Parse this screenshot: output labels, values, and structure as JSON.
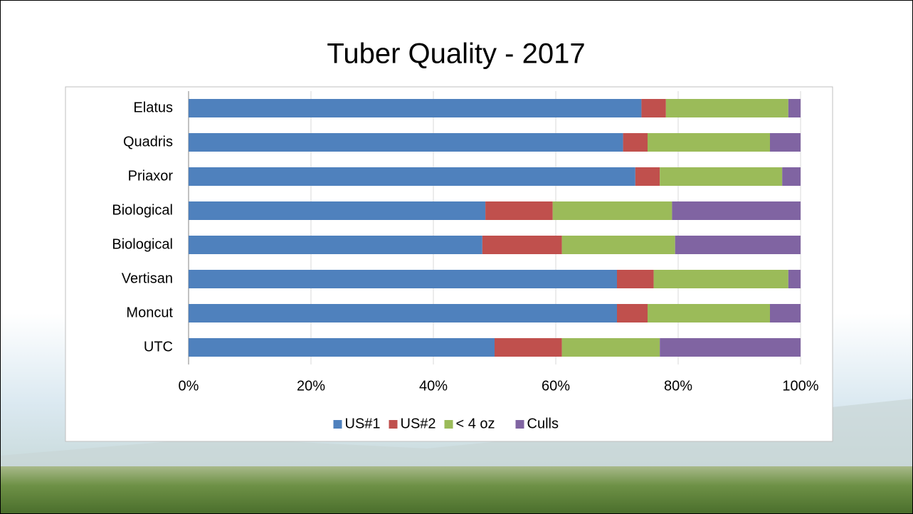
{
  "chart_data": {
    "type": "stacked-bar-horizontal",
    "title": "Tuber Quality - 2017",
    "categories": [
      "Elatus",
      "Quadris",
      "Priaxor",
      "Biological",
      "Biological",
      "Vertisan",
      "Moncut",
      "UTC"
    ],
    "series": [
      {
        "name": "US#1",
        "color": "#4f81bd",
        "values": [
          74,
          71,
          73,
          48.5,
          48,
          70,
          70,
          50
        ]
      },
      {
        "name": "US#2",
        "color": "#c0504d",
        "values": [
          4,
          4,
          4,
          11,
          13,
          6,
          5,
          11
        ]
      },
      {
        "name": "< 4 oz",
        "color": "#9bbb59",
        "values": [
          20,
          20,
          20,
          19.5,
          18.5,
          22,
          20,
          16
        ]
      },
      {
        "name": "Culls",
        "color": "#8064a2",
        "values": [
          2,
          5,
          3,
          21,
          20.5,
          2,
          5,
          23
        ]
      }
    ],
    "xlim": [
      0,
      100
    ],
    "xticks": [
      {
        "value": 0,
        "label": "0%"
      },
      {
        "value": 20,
        "label": "20%"
      },
      {
        "value": 40,
        "label": "40%"
      },
      {
        "value": 60,
        "label": "60%"
      },
      {
        "value": 80,
        "label": "80%"
      },
      {
        "value": 100,
        "label": "100%"
      }
    ],
    "grid": true,
    "legend": "bottom"
  }
}
